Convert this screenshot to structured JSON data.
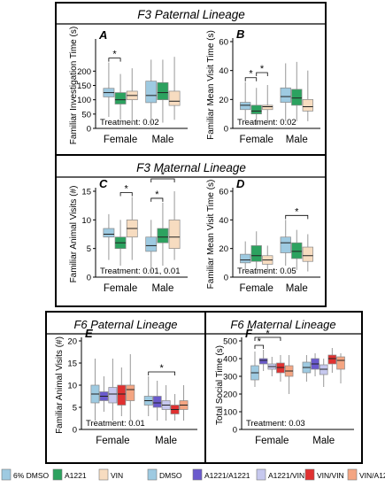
{
  "sections": [
    {
      "title": "F3 Paternal Lineage"
    },
    {
      "title": "F3 Maternal Lineage"
    },
    {
      "title": "F6 Paternal Lineage"
    },
    {
      "title": "F6 Maternal Lineage"
    }
  ],
  "legend": [
    {
      "label": "6% DMSO",
      "color": "#9ecae1"
    },
    {
      "label": "A1221",
      "color": "#2ca25f"
    },
    {
      "label": "VIN",
      "color": "#f7dcc0"
    },
    {
      "label": "DMSO",
      "color": "#9ecae1"
    },
    {
      "label": "A1221/A1221",
      "color": "#6a5acd"
    },
    {
      "label": "A1221/VIN",
      "color": "#c6c8ee"
    },
    {
      "label": "VIN/VIN",
      "color": "#e03131"
    },
    {
      "label": "VIN/A1221",
      "color": "#f4a582"
    }
  ],
  "chart_data": [
    {
      "type": "box",
      "panel": "A",
      "ylabel": "Familiar Investigation Time (s)",
      "ylim": [
        0,
        300
      ],
      "yticks": [
        0,
        50,
        100,
        150,
        200
      ],
      "categories": [
        "Female",
        "Male"
      ],
      "annotation": "Treatment: 0.02",
      "significance": [
        {
          "group": "Female",
          "pairs": [
            [
              0,
              1
            ]
          ]
        }
      ],
      "series": [
        {
          "name": "6% DMSO",
          "color": "#9ecae1",
          "boxes": [
            [
              40,
              110,
              125,
              140,
              230
            ],
            [
              10,
              90,
              115,
              165,
              240
            ]
          ]
        },
        {
          "name": "A1221",
          "color": "#2ca25f",
          "boxes": [
            [
              30,
              85,
              100,
              125,
              190
            ],
            [
              20,
              100,
              125,
              160,
              240
            ]
          ]
        },
        {
          "name": "VIN",
          "color": "#f7dcc0",
          "boxes": [
            [
              20,
              100,
              115,
              130,
              210
            ],
            [
              30,
              80,
              95,
              130,
              250
            ]
          ]
        }
      ]
    },
    {
      "type": "box",
      "panel": "B",
      "ylabel": "Familiar Mean Visit Time (s)",
      "ylim": [
        0,
        60
      ],
      "yticks": [
        0,
        20,
        40,
        60
      ],
      "categories": [
        "Female",
        "Male"
      ],
      "annotation": "Treatment: 0.02",
      "significance": [
        {
          "group": "Female",
          "pairs": [
            [
              0,
              1
            ],
            [
              1,
              2
            ]
          ]
        }
      ],
      "series": [
        {
          "name": "6% DMSO",
          "color": "#9ecae1",
          "boxes": [
            [
              5,
              13,
              16,
              18,
              32
            ],
            [
              5,
              18,
              22,
              28,
              45
            ]
          ]
        },
        {
          "name": "A1221",
          "color": "#2ca25f",
          "boxes": [
            [
              3,
              10,
              12,
              16,
              28
            ],
            [
              5,
              16,
              21,
              27,
              46
            ]
          ]
        },
        {
          "name": "VIN",
          "color": "#f7dcc0",
          "boxes": [
            [
              5,
              13,
              15,
              16,
              30
            ],
            [
              5,
              12,
              15,
              20,
              40
            ]
          ]
        }
      ]
    },
    {
      "type": "box",
      "panel": "C",
      "ylabel": "Familiar Animal Visits (#)",
      "ylim": [
        0,
        15
      ],
      "yticks": [
        0,
        5,
        10,
        15
      ],
      "categories": [
        "Female",
        "Male"
      ],
      "annotation": "Treatment: 0.01, 0.01",
      "significance": [
        {
          "group": "Female",
          "pairs": [
            [
              1,
              2
            ]
          ]
        },
        {
          "group": "Male",
          "pairs": [
            [
              0,
              1
            ],
            [
              0,
              2
            ]
          ]
        }
      ],
      "series": [
        {
          "name": "6% DMSO",
          "color": "#9ecae1",
          "boxes": [
            [
              3,
              7,
              7.5,
              8.5,
              11
            ],
            [
              1,
              4.5,
              5.5,
              7,
              10
            ]
          ]
        },
        {
          "name": "A1221",
          "color": "#2ca25f",
          "boxes": [
            [
              2,
              5,
              6,
              7,
              10
            ],
            [
              2,
              6,
              7,
              8.5,
              13
            ]
          ]
        },
        {
          "name": "VIN",
          "color": "#f7dcc0",
          "boxes": [
            [
              3,
              7,
              8.5,
              10,
              14
            ],
            [
              3,
              5,
              7,
              10,
              15
            ]
          ]
        }
      ]
    },
    {
      "type": "box",
      "panel": "D",
      "ylabel": "Familiar Mean Visit Time (s)",
      "ylim": [
        0,
        60
      ],
      "yticks": [
        0,
        20,
        40,
        60
      ],
      "categories": [
        "Female",
        "Male"
      ],
      "annotation": "Treatment: 0.05",
      "significance": [
        {
          "group": "Male",
          "pairs": [
            [
              0,
              2
            ]
          ]
        }
      ],
      "series": [
        {
          "name": "6% DMSO",
          "color": "#9ecae1",
          "boxes": [
            [
              4,
              10,
              12,
              16,
              25
            ],
            [
              8,
              17,
              24,
              28,
              40
            ]
          ]
        },
        {
          "name": "A1221",
          "color": "#2ca25f",
          "boxes": [
            [
              5,
              11,
              15,
              22,
              32
            ],
            [
              5,
              13,
              18,
              24,
              33
            ]
          ]
        },
        {
          "name": "VIN",
          "color": "#f7dcc0",
          "boxes": [
            [
              3,
              9,
              12,
              15,
              22
            ],
            [
              4,
              11,
              15,
              21,
              30
            ]
          ]
        }
      ]
    },
    {
      "type": "box",
      "panel": "E",
      "ylabel": "Familiar Animal Visits (#)",
      "ylim": [
        0,
        20
      ],
      "yticks": [
        0,
        5,
        10,
        15,
        20
      ],
      "categories": [
        "Female",
        "Male"
      ],
      "annotation": "Treatment: 0.01",
      "significance": [
        {
          "group": "Male",
          "pairs": [
            [
              0,
              3
            ]
          ]
        }
      ],
      "series": [
        {
          "name": "DMSO",
          "color": "#9ecae1",
          "boxes": [
            [
              2,
              6,
              8,
              10,
              16
            ],
            [
              3,
              5.5,
              6.5,
              7.5,
              12
            ]
          ]
        },
        {
          "name": "A1221/A1221",
          "color": "#6a5acd",
          "boxes": [
            [
              4,
              6.5,
              7.5,
              8.5,
              12
            ],
            [
              2,
              5,
              6,
              7.5,
              11
            ]
          ]
        },
        {
          "name": "A1221/VIN",
          "color": "#c6c8ee",
          "boxes": [
            [
              2,
              6,
              8,
              9.5,
              16
            ],
            [
              2,
              4.5,
              5.5,
              6.5,
              10
            ]
          ]
        },
        {
          "name": "VIN/VIN",
          "color": "#e03131",
          "boxes": [
            [
              3,
              5.5,
              8,
              10,
              14
            ],
            [
              2,
              3.5,
              4.5,
              5.5,
              8
            ]
          ]
        },
        {
          "name": "VIN/A1221",
          "color": "#f4a582",
          "boxes": [
            [
              2,
              6.5,
              9,
              10,
              17
            ],
            [
              2,
              4.5,
              5.5,
              6.5,
              10
            ]
          ]
        }
      ]
    },
    {
      "type": "box",
      "panel": "F",
      "ylabel": "Total Social Time (s)",
      "ylim": [
        0,
        500
      ],
      "yticks": [
        0,
        100,
        200,
        300,
        400,
        500
      ],
      "categories": [
        "Female",
        "Male"
      ],
      "annotation": "Treatment: 0.03",
      "significance": [
        {
          "group": "Female",
          "pairs": [
            [
              0,
              1
            ],
            [
              0,
              3
            ]
          ]
        }
      ],
      "series": [
        {
          "name": "DMSO",
          "color": "#9ecae1",
          "boxes": [
            [
              240,
              280,
              320,
              360,
              440
            ],
            [
              270,
              320,
              350,
              380,
              420
            ]
          ]
        },
        {
          "name": "A1221/A1221",
          "color": "#6a5acd",
          "boxes": [
            [
              330,
              370,
              390,
              400,
              450
            ],
            [
              300,
              340,
              370,
              400,
              430
            ]
          ]
        },
        {
          "name": "A1221/VIN",
          "color": "#c6c8ee",
          "boxes": [
            [
              300,
              340,
              355,
              370,
              410
            ],
            [
              240,
              310,
              340,
              365,
              400
            ]
          ]
        },
        {
          "name": "VIN/VIN",
          "color": "#e03131",
          "boxes": [
            [
              270,
              320,
              350,
              375,
              420
            ],
            [
              320,
              370,
              400,
              420,
              460
            ]
          ]
        },
        {
          "name": "VIN/A1221",
          "color": "#f4a582",
          "boxes": [
            [
              200,
              300,
              330,
              360,
              420
            ],
            [
              260,
              340,
              390,
              410,
              430
            ]
          ]
        }
      ]
    }
  ]
}
